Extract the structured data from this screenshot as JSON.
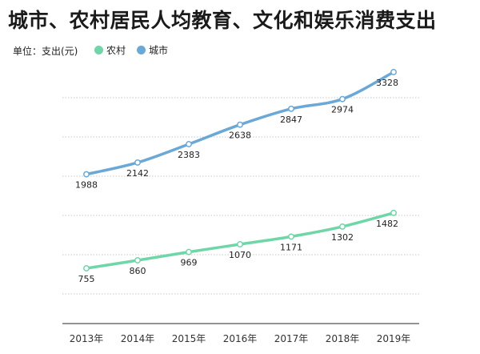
{
  "title": "城市、农村居民人均教育、文化和娱乐消费支出",
  "unit_label": "单位：支出(元)",
  "chart_data": {
    "type": "line",
    "categories": [
      "2013年",
      "2014年",
      "2015年",
      "2016年",
      "2017年",
      "2018年",
      "2019年"
    ],
    "series": [
      {
        "name": "农村",
        "color": "#6fd6a8",
        "values": [
          755,
          860,
          969,
          1070,
          1171,
          1302,
          1482
        ]
      },
      {
        "name": "城市",
        "color": "#6aa8d8",
        "values": [
          1988,
          2142,
          2383,
          2638,
          2847,
          2974,
          3328
        ]
      }
    ],
    "grid": "horizontal dotted",
    "legend_position": "top-left"
  }
}
